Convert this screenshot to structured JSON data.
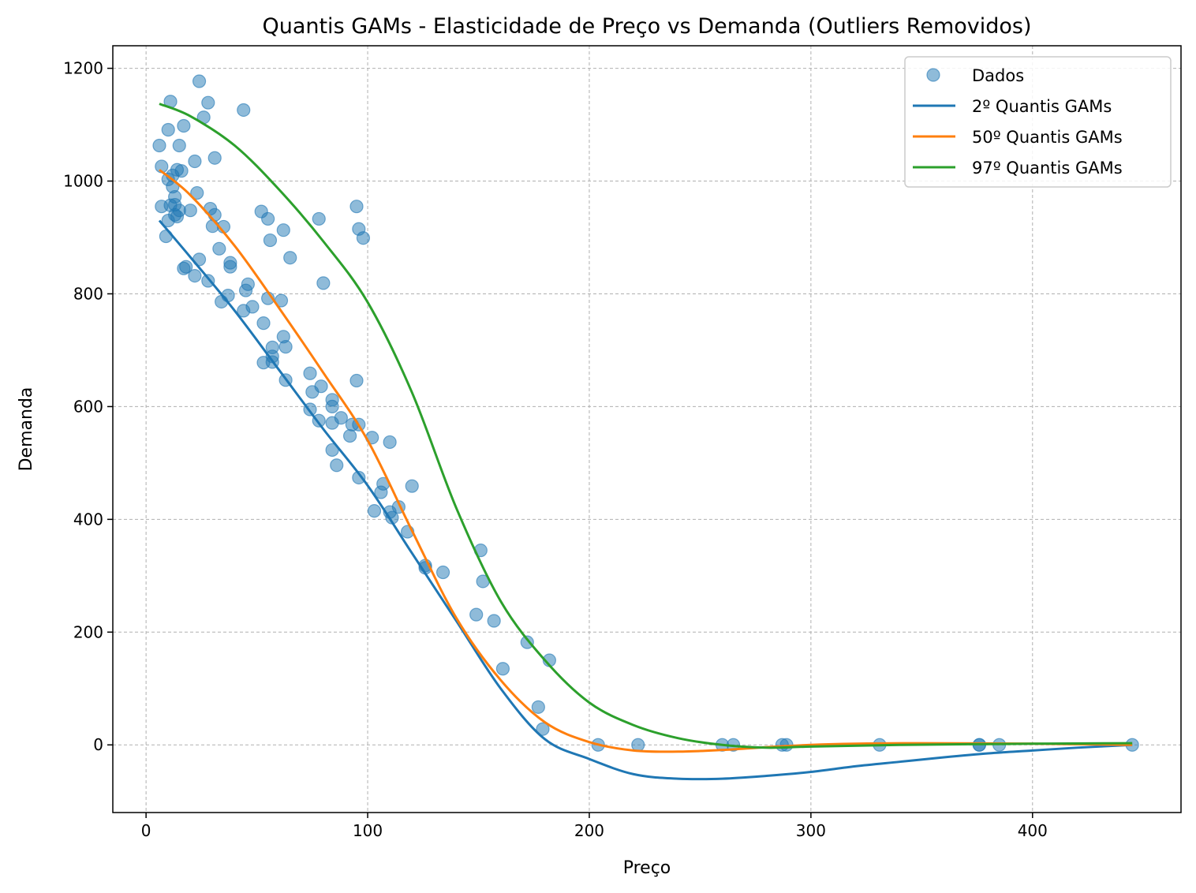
{
  "chart_data": {
    "type": "scatter",
    "title": "Quantis GAMs - Elasticidade de Preço vs Demanda (Outliers Removidos)",
    "xlabel": "Preço",
    "ylabel": "Demanda",
    "xlim": [
      -15,
      467
    ],
    "ylim": [
      -120,
      1240
    ],
    "xticks": [
      0,
      100,
      200,
      300,
      400
    ],
    "yticks": [
      0,
      200,
      400,
      600,
      800,
      1000,
      1200
    ],
    "grid": true,
    "legend_position": "top-right",
    "scatter": {
      "name": "Dados",
      "color": "#1f77b4",
      "points": [
        [
          6,
          1063
        ],
        [
          7,
          1026
        ],
        [
          7,
          955
        ],
        [
          9,
          902
        ],
        [
          10,
          1003
        ],
        [
          10,
          1091
        ],
        [
          10,
          930
        ],
        [
          11,
          1141
        ],
        [
          11,
          957
        ],
        [
          12,
          990
        ],
        [
          12,
          1010
        ],
        [
          13,
          972
        ],
        [
          13,
          940
        ],
        [
          13,
          958
        ],
        [
          14,
          1020
        ],
        [
          14,
          937
        ],
        [
          15,
          1063
        ],
        [
          15,
          948
        ],
        [
          16,
          1018
        ],
        [
          17,
          1098
        ],
        [
          17,
          845
        ],
        [
          18,
          848
        ],
        [
          20,
          948
        ],
        [
          22,
          1035
        ],
        [
          22,
          832
        ],
        [
          23,
          979
        ],
        [
          24,
          861
        ],
        [
          24,
          1177
        ],
        [
          26,
          1113
        ],
        [
          28,
          823
        ],
        [
          28,
          1139
        ],
        [
          29,
          951
        ],
        [
          30,
          920
        ],
        [
          31,
          940
        ],
        [
          31,
          1041
        ],
        [
          33,
          880
        ],
        [
          34,
          786
        ],
        [
          35,
          919
        ],
        [
          37,
          797
        ],
        [
          38,
          855
        ],
        [
          38,
          848
        ],
        [
          44,
          1126
        ],
        [
          44,
          770
        ],
        [
          45,
          806
        ],
        [
          46,
          817
        ],
        [
          48,
          777
        ],
        [
          52,
          946
        ],
        [
          53,
          748
        ],
        [
          53,
          678
        ],
        [
          55,
          792
        ],
        [
          55,
          933
        ],
        [
          56,
          895
        ],
        [
          57,
          679
        ],
        [
          57,
          705
        ],
        [
          57,
          689
        ],
        [
          61,
          788
        ],
        [
          62,
          724
        ],
        [
          62,
          913
        ],
        [
          63,
          706
        ],
        [
          63,
          647
        ],
        [
          65,
          864
        ],
        [
          74,
          659
        ],
        [
          74,
          595
        ],
        [
          75,
          626
        ],
        [
          78,
          933
        ],
        [
          78,
          575
        ],
        [
          79,
          636
        ],
        [
          80,
          819
        ],
        [
          84,
          612
        ],
        [
          84,
          600
        ],
        [
          84,
          571
        ],
        [
          84,
          523
        ],
        [
          86,
          496
        ],
        [
          88,
          580
        ],
        [
          92,
          548
        ],
        [
          93,
          568
        ],
        [
          95,
          955
        ],
        [
          95,
          646
        ],
        [
          96,
          568
        ],
        [
          96,
          474
        ],
        [
          96,
          915
        ],
        [
          98,
          899
        ],
        [
          102,
          545
        ],
        [
          103,
          415
        ],
        [
          106,
          448
        ],
        [
          107,
          463
        ],
        [
          110,
          537
        ],
        [
          110,
          413
        ],
        [
          111,
          403
        ],
        [
          114,
          422
        ],
        [
          118,
          378
        ],
        [
          120,
          459
        ],
        [
          126,
          318
        ],
        [
          126,
          314
        ],
        [
          134,
          306
        ],
        [
          149,
          231
        ],
        [
          151,
          345
        ],
        [
          152,
          290
        ],
        [
          157,
          220
        ],
        [
          161,
          135
        ],
        [
          172,
          182
        ],
        [
          177,
          67
        ],
        [
          179,
          28
        ],
        [
          182,
          150
        ],
        [
          204,
          0
        ],
        [
          222,
          0
        ],
        [
          260,
          0
        ],
        [
          265,
          0
        ],
        [
          287,
          0
        ],
        [
          289,
          0
        ],
        [
          331,
          0
        ],
        [
          376,
          0
        ],
        [
          376,
          0
        ],
        [
          385,
          0
        ],
        [
          445,
          0
        ]
      ]
    },
    "series": [
      {
        "name": "2º Quantis GAMs",
        "color": "#1f77b4",
        "x": [
          6,
          20,
          40,
          60,
          80,
          100,
          120,
          140,
          160,
          180,
          200,
          220,
          240,
          260,
          280,
          300,
          320,
          340,
          360,
          380,
          400,
          420,
          445
        ],
        "y": [
          930,
          865,
          770,
          665,
          560,
          460,
          340,
          220,
          100,
          10,
          -25,
          -52,
          -60,
          -60,
          -55,
          -48,
          -38,
          -30,
          -22,
          -15,
          -10,
          -5,
          0
        ]
      },
      {
        "name": "50º Quantis GAMs",
        "color": "#ff7f0e",
        "x": [
          6,
          20,
          40,
          60,
          80,
          100,
          120,
          140,
          160,
          180,
          200,
          220,
          240,
          260,
          280,
          300,
          320,
          350,
          400,
          445
        ],
        "y": [
          1020,
          975,
          885,
          775,
          660,
          540,
          380,
          225,
          115,
          40,
          5,
          -10,
          -12,
          -9,
          -4,
          0,
          2,
          3,
          2,
          0
        ]
      },
      {
        "name": "97º Quantis GAMs",
        "color": "#2ca02c",
        "x": [
          6,
          20,
          40,
          60,
          80,
          100,
          120,
          140,
          160,
          180,
          200,
          220,
          240,
          260,
          280,
          300,
          340,
          400,
          445
        ],
        "y": [
          1137,
          1115,
          1063,
          985,
          893,
          785,
          625,
          420,
          255,
          150,
          75,
          35,
          12,
          0,
          -5,
          -3,
          0,
          2,
          3
        ]
      }
    ]
  }
}
